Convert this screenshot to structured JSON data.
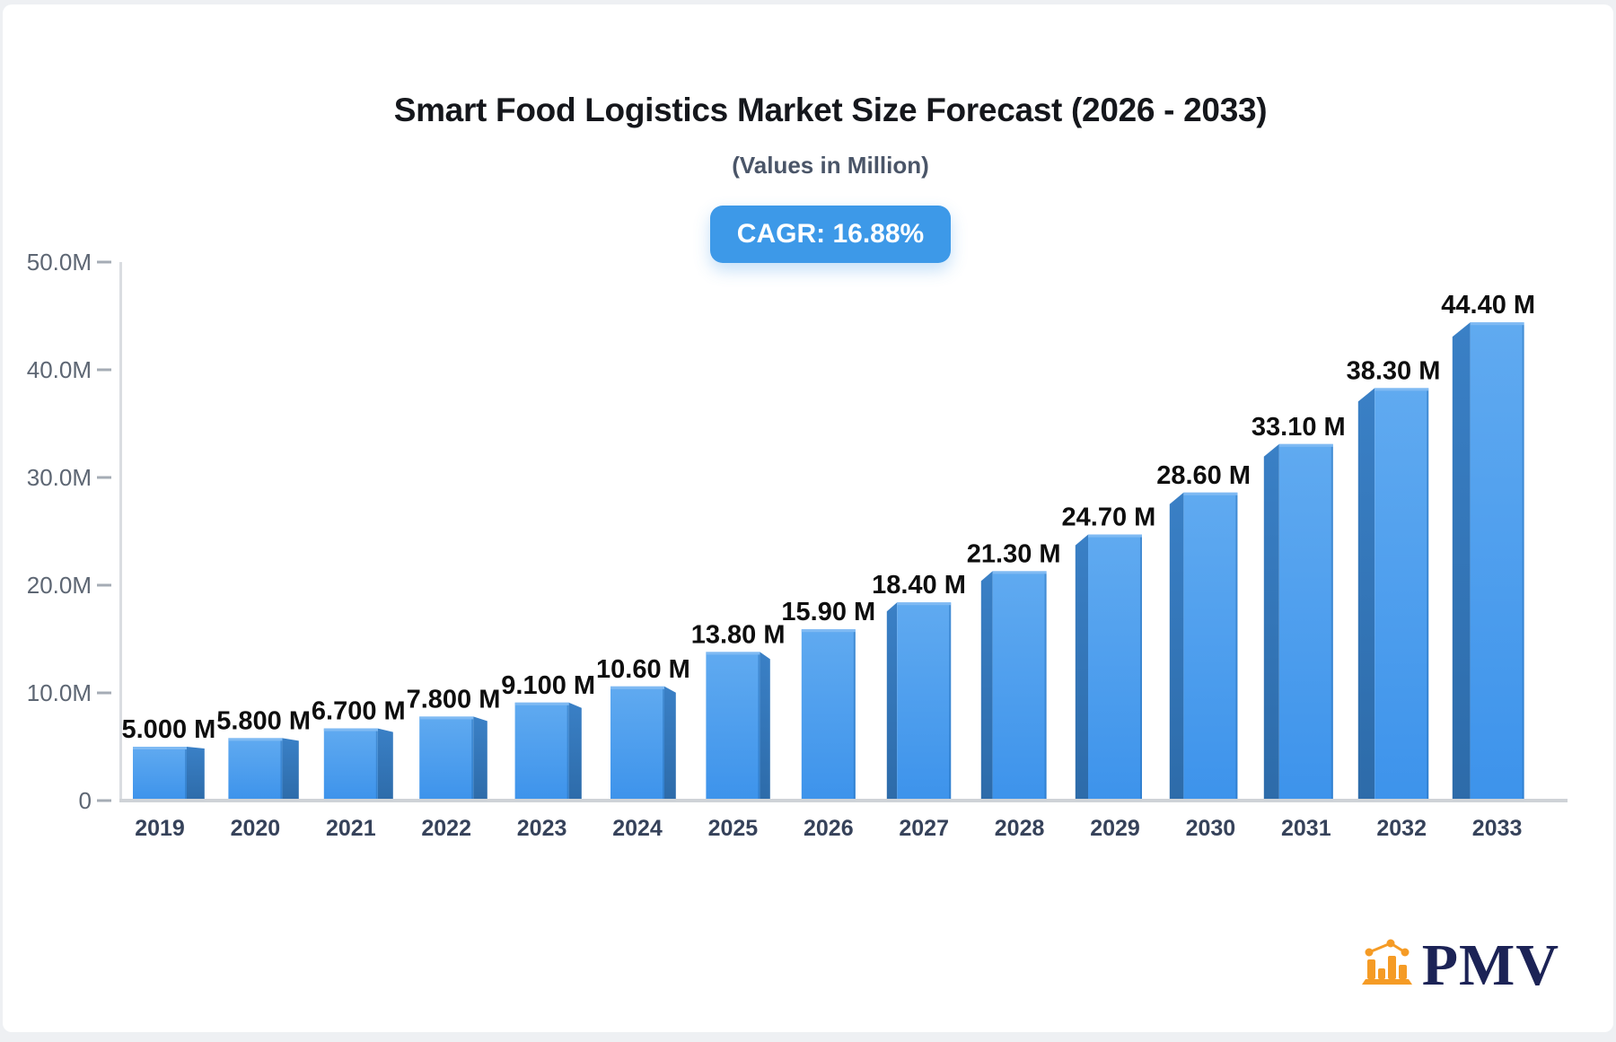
{
  "header": {
    "title": "Smart Food Logistics Market Size Forecast (2026 - 2033)",
    "subtitle": "(Values in Million)",
    "cagr_badge": "CAGR: 16.88%"
  },
  "chart_data": {
    "type": "bar",
    "title": "Smart Food Logistics Market Size Forecast (2026 - 2033)",
    "subtitle": "(Values in Million)",
    "annotation": "CAGR: 16.88%",
    "categories": [
      "2019",
      "2020",
      "2021",
      "2022",
      "2023",
      "2024",
      "2025",
      "2026",
      "2027",
      "2028",
      "2029",
      "2030",
      "2031",
      "2032",
      "2033"
    ],
    "values": [
      5.0,
      5.8,
      6.7,
      7.8,
      9.1,
      10.6,
      13.8,
      15.9,
      18.4,
      21.3,
      24.7,
      28.6,
      33.1,
      38.3,
      44.4
    ],
    "value_labels": [
      "5.000 M",
      "5.800 M",
      "6.700 M",
      "7.800 M",
      "9.100 M",
      "10.60 M",
      "13.80 M",
      "15.90 M",
      "18.40 M",
      "21.30 M",
      "24.70 M",
      "28.60 M",
      "33.10 M",
      "38.30 M",
      "44.40 M"
    ],
    "unit": "Million",
    "xlabel": "",
    "ylabel": "",
    "ylim": [
      0,
      50
    ],
    "y_ticks": [
      "0",
      "10.0M",
      "20.0M",
      "30.0M",
      "40.0M",
      "50.0M"
    ],
    "grid": false,
    "legend": false,
    "style": "3d-bars",
    "colors": {
      "bar_front_top": "#60aaf0",
      "bar_front_bottom": "#3d93eb",
      "bar_side_top": "#3a80c6",
      "bar_side_bottom": "#2d6ba9",
      "bar_top_highlight": "#7fbaf3",
      "bar_inner_edge": "rgba(36,107,177,0.45)",
      "axis_line": "#dadde1",
      "baseline": "#cfd3d7",
      "tick": "#a5acb5",
      "y_label": "#5d6673",
      "x_label": "#36425a",
      "value_label": "#0e0e0e",
      "badge_bg": "#3d99e8"
    }
  },
  "logo": {
    "text": "PMV",
    "icon": "bar-chart-logo-icon",
    "orange": "#f59b25",
    "navy": "#1c2356"
  }
}
